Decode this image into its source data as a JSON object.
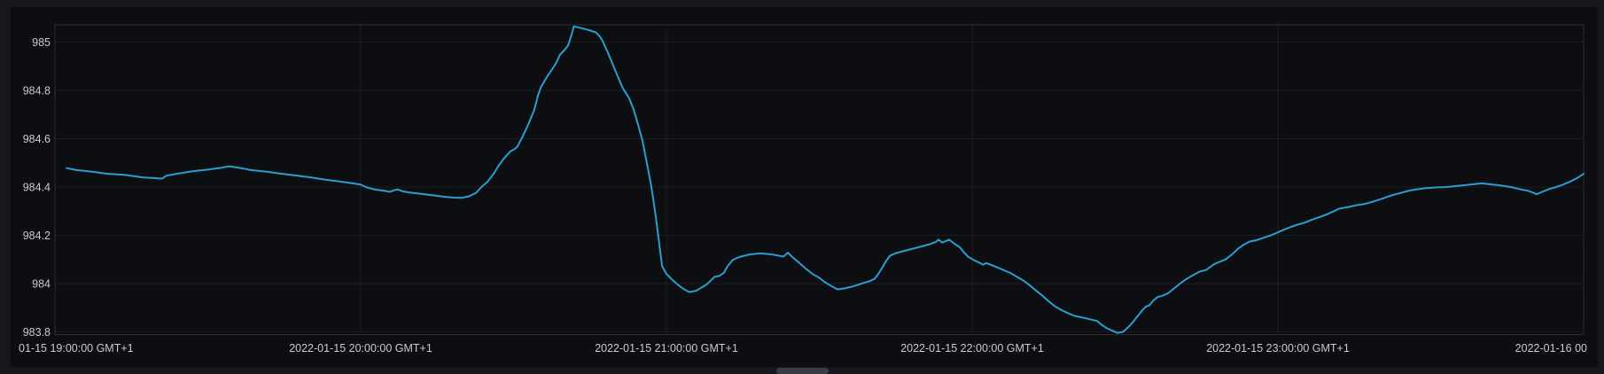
{
  "theme": {
    "page_bg": "#16171d",
    "panel_bg": "#0d0e12",
    "axis_text_color": "#c9cad3",
    "grid_color": "rgba(204,204,220,0.07)",
    "plot_border_color": "rgba(204,204,220,0.16)",
    "line_color": "#2b9dce",
    "scrollbar_thumb_color": "#3a3d46"
  },
  "scrollbar": {
    "thumb_left": 876,
    "thumb_width": 59
  },
  "chart_data": {
    "type": "line",
    "title": "",
    "xlabel": "",
    "ylabel": "",
    "legend": "none",
    "grid": "on",
    "x_unit": "hours after first tick (ticks are hourly)",
    "x_range_hours": 5,
    "ylim": [
      983.79,
      985.07
    ],
    "y_ticks": [
      {
        "label": "985",
        "value": 985.0
      },
      {
        "label": "984.8",
        "value": 984.8
      },
      {
        "label": "984.6",
        "value": 984.6
      },
      {
        "label": "984.4",
        "value": 984.4
      },
      {
        "label": "984.2",
        "value": 984.2
      },
      {
        "label": "984",
        "value": 984.0
      },
      {
        "label": "983.8",
        "value": 983.8
      }
    ],
    "x_ticks": [
      {
        "label": "01-15 19:00:00 GMT+1",
        "t": 0,
        "align": "left"
      },
      {
        "label": "2022-01-15 20:00:00 GMT+1",
        "t": 1,
        "align": "center"
      },
      {
        "label": "2022-01-15 21:00:00 GMT+1",
        "t": 2,
        "align": "center"
      },
      {
        "label": "2022-01-15 22:00:00 GMT+1",
        "t": 3,
        "align": "center"
      },
      {
        "label": "2022-01-15 23:00:00 GMT+1",
        "t": 4,
        "align": "center"
      },
      {
        "label": "2022-01-16 00",
        "t": 5,
        "align": "right"
      }
    ],
    "points": [
      [
        0.038,
        984.478
      ],
      [
        0.07,
        984.47
      ],
      [
        0.11,
        984.465
      ],
      [
        0.17,
        984.455
      ],
      [
        0.23,
        984.45
      ],
      [
        0.285,
        984.44
      ],
      [
        0.35,
        984.435
      ],
      [
        0.365,
        984.447
      ],
      [
        0.4,
        984.455
      ],
      [
        0.45,
        984.465
      ],
      [
        0.5,
        984.472
      ],
      [
        0.545,
        984.48
      ],
      [
        0.57,
        984.486
      ],
      [
        0.61,
        984.478
      ],
      [
        0.64,
        984.47
      ],
      [
        0.69,
        984.464
      ],
      [
        0.74,
        984.455
      ],
      [
        0.785,
        984.448
      ],
      [
        0.835,
        984.44
      ],
      [
        0.885,
        984.43
      ],
      [
        0.95,
        984.42
      ],
      [
        1.0,
        984.41
      ],
      [
        1.02,
        984.398
      ],
      [
        1.045,
        984.39
      ],
      [
        1.075,
        984.385
      ],
      [
        1.095,
        984.38
      ],
      [
        1.105,
        984.385
      ],
      [
        1.12,
        984.39
      ],
      [
        1.135,
        984.383
      ],
      [
        1.155,
        984.378
      ],
      [
        1.21,
        984.37
      ],
      [
        1.27,
        984.36
      ],
      [
        1.305,
        984.356
      ],
      [
        1.33,
        984.355
      ],
      [
        1.355,
        984.362
      ],
      [
        1.378,
        984.376
      ],
      [
        1.395,
        984.4
      ],
      [
        1.415,
        984.422
      ],
      [
        1.435,
        984.455
      ],
      [
        1.452,
        984.49
      ],
      [
        1.47,
        984.52
      ],
      [
        1.49,
        984.548
      ],
      [
        1.502,
        984.556
      ],
      [
        1.512,
        984.566
      ],
      [
        1.53,
        984.61
      ],
      [
        1.55,
        984.665
      ],
      [
        1.568,
        984.72
      ],
      [
        1.58,
        984.78
      ],
      [
        1.59,
        984.815
      ],
      [
        1.61,
        984.858
      ],
      [
        1.625,
        984.885
      ],
      [
        1.64,
        984.915
      ],
      [
        1.652,
        984.948
      ],
      [
        1.665,
        984.965
      ],
      [
        1.678,
        984.985
      ],
      [
        1.69,
        985.03
      ],
      [
        1.697,
        985.065
      ],
      [
        1.715,
        985.06
      ],
      [
        1.74,
        985.052
      ],
      [
        1.756,
        985.046
      ],
      [
        1.77,
        985.04
      ],
      [
        1.784,
        985.02
      ],
      [
        1.791,
        985.005
      ],
      [
        1.8,
        984.98
      ],
      [
        1.81,
        984.952
      ],
      [
        1.82,
        984.922
      ],
      [
        1.83,
        984.89
      ],
      [
        1.84,
        984.86
      ],
      [
        1.85,
        984.83
      ],
      [
        1.858,
        984.808
      ],
      [
        1.878,
        984.768
      ],
      [
        1.893,
        984.72
      ],
      [
        1.907,
        984.66
      ],
      [
        1.922,
        984.59
      ],
      [
        1.936,
        984.5
      ],
      [
        1.951,
        984.4
      ],
      [
        1.965,
        984.28
      ],
      [
        1.977,
        984.16
      ],
      [
        1.986,
        984.072
      ],
      [
        2.0,
        984.04
      ],
      [
        2.017,
        984.018
      ],
      [
        2.038,
        983.995
      ],
      [
        2.058,
        983.976
      ],
      [
        2.075,
        983.965
      ],
      [
        2.096,
        983.97
      ],
      [
        2.113,
        983.982
      ],
      [
        2.13,
        983.995
      ],
      [
        2.145,
        984.012
      ],
      [
        2.157,
        984.028
      ],
      [
        2.174,
        984.032
      ],
      [
        2.188,
        984.045
      ],
      [
        2.2,
        984.072
      ],
      [
        2.217,
        984.098
      ],
      [
        2.238,
        984.11
      ],
      [
        2.27,
        984.12
      ],
      [
        2.307,
        984.125
      ],
      [
        2.348,
        984.12
      ],
      [
        2.383,
        984.112
      ],
      [
        2.397,
        984.128
      ],
      [
        2.414,
        984.108
      ],
      [
        2.435,
        984.085
      ],
      [
        2.458,
        984.06
      ],
      [
        2.478,
        984.04
      ],
      [
        2.499,
        984.025
      ],
      [
        2.519,
        984.005
      ],
      [
        2.539,
        983.99
      ],
      [
        2.56,
        983.976
      ],
      [
        2.583,
        983.98
      ],
      [
        2.609,
        983.988
      ],
      [
        2.638,
        984.0
      ],
      [
        2.664,
        984.01
      ],
      [
        2.681,
        984.02
      ],
      [
        2.693,
        984.04
      ],
      [
        2.707,
        984.068
      ],
      [
        2.719,
        984.095
      ],
      [
        2.731,
        984.115
      ],
      [
        2.748,
        984.125
      ],
      [
        2.786,
        984.138
      ],
      [
        2.823,
        984.15
      ],
      [
        2.858,
        984.162
      ],
      [
        2.881,
        984.172
      ],
      [
        2.89,
        984.182
      ],
      [
        2.902,
        984.17
      ],
      [
        2.925,
        984.182
      ],
      [
        2.942,
        984.165
      ],
      [
        2.96,
        984.15
      ],
      [
        2.974,
        984.128
      ],
      [
        2.988,
        984.11
      ],
      [
        3.009,
        984.095
      ],
      [
        3.026,
        984.085
      ],
      [
        3.035,
        984.078
      ],
      [
        3.046,
        984.085
      ],
      [
        3.067,
        984.075
      ],
      [
        3.096,
        984.06
      ],
      [
        3.125,
        984.044
      ],
      [
        3.151,
        984.025
      ],
      [
        3.171,
        984.01
      ],
      [
        3.191,
        983.99
      ],
      [
        3.212,
        983.968
      ],
      [
        3.232,
        983.948
      ],
      [
        3.252,
        983.925
      ],
      [
        3.272,
        983.905
      ],
      [
        3.293,
        983.89
      ],
      [
        3.316,
        983.876
      ],
      [
        3.336,
        983.866
      ],
      [
        3.359,
        983.86
      ],
      [
        3.386,
        983.852
      ],
      [
        3.409,
        983.845
      ],
      [
        3.423,
        983.83
      ],
      [
        3.441,
        983.815
      ],
      [
        3.458,
        983.805
      ],
      [
        3.475,
        983.796
      ],
      [
        3.493,
        983.8
      ],
      [
        3.507,
        983.815
      ],
      [
        3.522,
        983.835
      ],
      [
        3.539,
        983.862
      ],
      [
        3.557,
        983.89
      ],
      [
        3.568,
        983.905
      ],
      [
        3.58,
        983.91
      ],
      [
        3.591,
        983.928
      ],
      [
        3.606,
        983.944
      ],
      [
        3.623,
        983.95
      ],
      [
        3.641,
        983.96
      ],
      [
        3.661,
        983.98
      ],
      [
        3.678,
        983.998
      ],
      [
        3.696,
        984.015
      ],
      [
        3.716,
        984.03
      ],
      [
        3.73,
        984.04
      ],
      [
        3.745,
        984.05
      ],
      [
        3.765,
        984.056
      ],
      [
        3.78,
        984.07
      ],
      [
        3.791,
        984.08
      ],
      [
        3.809,
        984.09
      ],
      [
        3.829,
        984.1
      ],
      [
        3.849,
        984.12
      ],
      [
        3.87,
        984.145
      ],
      [
        3.887,
        984.16
      ],
      [
        3.907,
        984.174
      ],
      [
        3.93,
        984.18
      ],
      [
        3.954,
        984.19
      ],
      [
        3.977,
        984.2
      ],
      [
        4.0,
        984.212
      ],
      [
        4.023,
        984.225
      ],
      [
        4.043,
        984.235
      ],
      [
        4.064,
        984.244
      ],
      [
        4.087,
        984.252
      ],
      [
        4.11,
        984.264
      ],
      [
        4.133,
        984.274
      ],
      [
        4.157,
        984.285
      ],
      [
        4.18,
        984.298
      ],
      [
        4.2,
        984.31
      ],
      [
        4.226,
        984.316
      ],
      [
        4.255,
        984.324
      ],
      [
        4.284,
        984.33
      ],
      [
        4.313,
        984.34
      ],
      [
        4.342,
        984.352
      ],
      [
        4.371,
        984.365
      ],
      [
        4.4,
        984.375
      ],
      [
        4.429,
        984.385
      ],
      [
        4.452,
        984.39
      ],
      [
        4.481,
        984.395
      ],
      [
        4.516,
        984.398
      ],
      [
        4.554,
        984.4
      ],
      [
        4.591,
        984.405
      ],
      [
        4.629,
        984.41
      ],
      [
        4.667,
        984.415
      ],
      [
        4.702,
        984.41
      ],
      [
        4.736,
        984.405
      ],
      [
        4.768,
        984.398
      ],
      [
        4.794,
        984.39
      ],
      [
        4.82,
        984.384
      ],
      [
        4.838,
        984.375
      ],
      [
        4.846,
        984.37
      ],
      [
        4.864,
        984.38
      ],
      [
        4.884,
        984.39
      ],
      [
        4.91,
        984.4
      ],
      [
        4.933,
        984.41
      ],
      [
        4.951,
        984.42
      ],
      [
        4.968,
        984.43
      ],
      [
        4.983,
        984.44
      ],
      [
        4.997,
        984.452
      ],
      [
        5.0,
        984.455
      ]
    ]
  }
}
